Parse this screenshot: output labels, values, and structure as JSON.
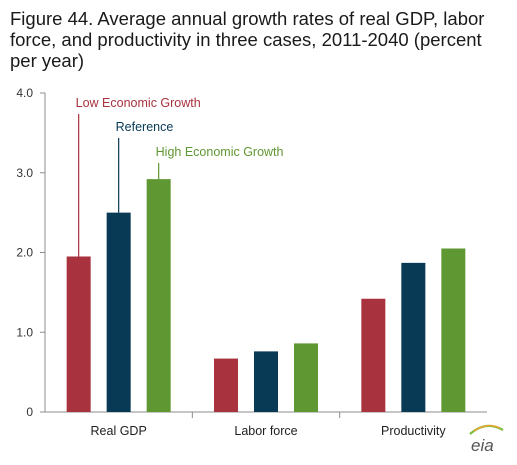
{
  "chart_data": {
    "type": "bar",
    "title": "Figure 44. Average annual growth rates of real GDP, labor force, and productivity in three cases, 2011-2040 (percent per year)",
    "categories": [
      "Real GDP",
      "Labor force",
      "Productivity"
    ],
    "series": [
      {
        "name": "Low Economic Growth",
        "color": "#a8323e",
        "values": [
          1.95,
          0.67,
          1.42
        ]
      },
      {
        "name": "Reference",
        "color": "#083a55",
        "values": [
          2.5,
          0.76,
          1.87
        ]
      },
      {
        "name": "High Economic Growth",
        "color": "#5f9732",
        "values": [
          2.92,
          0.86,
          2.05
        ]
      }
    ],
    "y_ticks": [
      "4.0",
      "3.0",
      "2.0",
      "1.0",
      "0"
    ],
    "ylim": [
      0,
      4
    ],
    "grid": false,
    "legend": "callout labels above Real GDP bars"
  },
  "logo_text": "eia"
}
